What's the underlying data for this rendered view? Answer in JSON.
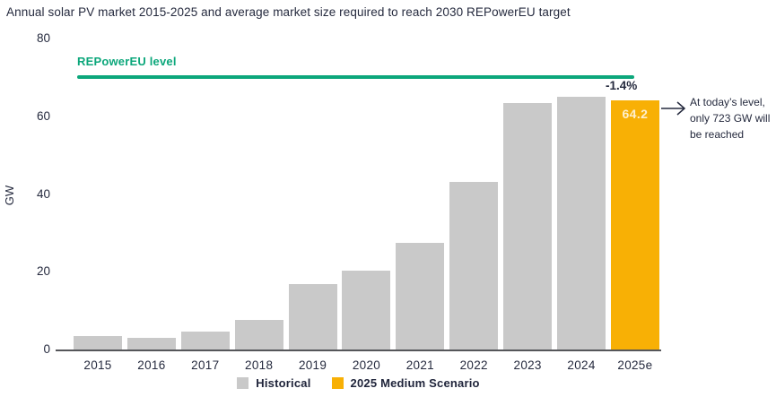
{
  "chart_data": {
    "type": "bar",
    "title": "Annual solar PV market 2015-2025 and average market size required to reach 2030 REPowerEU target",
    "ylabel": "GW",
    "ylim": [
      0,
      80
    ],
    "yticks": [
      80,
      60,
      40,
      20,
      0
    ],
    "grid": false,
    "legend_position": "bottom",
    "categories": [
      "2015",
      "2016",
      "2017",
      "2018",
      "2019",
      "2020",
      "2021",
      "2022",
      "2023",
      "2024",
      "2025e"
    ],
    "series": [
      {
        "name": "Historical",
        "color": "#c9c9c9",
        "values": [
          3.5,
          3.1,
          4.7,
          7.7,
          16.8,
          20.2,
          27.5,
          43.2,
          63.4,
          65.1,
          null
        ]
      },
      {
        "name": "2025 Medium Scenario",
        "color": "#f8b005",
        "values": [
          null,
          null,
          null,
          null,
          null,
          null,
          null,
          null,
          null,
          null,
          64.2
        ]
      }
    ],
    "reference_line": {
      "label": "REPowerEU level",
      "value": 70,
      "color": "#0ca77b"
    },
    "annotations": {
      "pct_change": "-1.4%",
      "bar_value_label": "64.2",
      "callout": "At today’s level, only 723 GW will be reached"
    },
    "legend": [
      {
        "label": "Historical",
        "color": "#c9c9c9"
      },
      {
        "label": "2025 Medium Scenario",
        "color": "#f8b005"
      }
    ],
    "colors": {
      "text": "#252a3e",
      "axis": "#55565a",
      "background": "#ffffff"
    }
  }
}
